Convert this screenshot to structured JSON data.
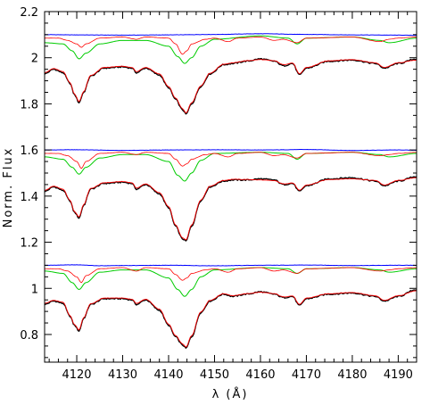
{
  "chart_data": {
    "type": "line",
    "xlabel": "λ (Å)",
    "ylabel": "Norm. Flux",
    "xlim": [
      4113,
      4194
    ],
    "ylim": [
      0.68,
      2.2
    ],
    "x_ticks": [
      4120,
      4130,
      4140,
      4150,
      4160,
      4170,
      4180,
      4190
    ],
    "y_ticks": [
      0.8,
      1.0,
      1.2,
      1.4,
      1.6,
      1.8,
      2.0,
      2.2
    ],
    "y_tick_labels": [
      "0.8",
      "1",
      "1.2",
      "1.4",
      "1.6",
      "1.8",
      "2",
      "2.2"
    ],
    "colors": {
      "observed": "#000000",
      "model": "#ff0000",
      "component_a": "#00cc00",
      "component_b": "#ff0000",
      "component_c": "#0000ff"
    },
    "panels": [
      {
        "series": [
          {
            "role": "component_c",
            "x": [
              4113,
              4120,
              4130,
              4140,
              4150,
              4160,
              4170,
              4180,
              4190,
              4194
            ],
            "y": [
              2.1,
              2.099,
              2.098,
              2.099,
              2.101,
              2.104,
              2.101,
              2.099,
              2.098,
              2.097
            ]
          },
          {
            "role": "component_a",
            "x": [
              4113,
              4117,
              4119,
              4120.5,
              4122,
              4125,
              4130,
              4135,
              4140,
              4142,
              4143.5,
              4145,
              4147,
              4150,
              4160,
              4166,
              4168,
              4170,
              4180,
              4186,
              4188,
              4194
            ],
            "y": [
              2.065,
              2.06,
              2.03,
              1.995,
              2.02,
              2.06,
              2.075,
              2.075,
              2.05,
              2.005,
              1.975,
              2.0,
              2.05,
              2.08,
              2.095,
              2.085,
              2.06,
              2.085,
              2.09,
              2.075,
              2.065,
              2.085
            ]
          },
          {
            "role": "component_b",
            "x": [
              4113,
              4116,
              4118,
              4120,
              4121,
              4122,
              4125,
              4130,
              4133,
              4135,
              4140,
              4141.5,
              4143,
              4144,
              4145,
              4148,
              4150,
              4153,
              4155,
              4160,
              4163,
              4165,
              4168,
              4170,
              4180,
              4186,
              4188,
              4190,
              4194
            ],
            "y": [
              2.085,
              2.085,
              2.075,
              2.06,
              2.045,
              2.06,
              2.085,
              2.09,
              2.08,
              2.09,
              2.085,
              2.06,
              2.015,
              2.03,
              2.06,
              2.08,
              2.085,
              2.07,
              2.085,
              2.09,
              2.075,
              2.08,
              2.065,
              2.085,
              2.09,
              2.07,
              2.08,
              2.085,
              2.09
            ]
          },
          {
            "role": "observed",
            "x": [
              4113,
              4115,
              4117,
              4118.5,
              4119.5,
              4120.5,
              4121.5,
              4123,
              4126,
              4130,
              4132,
              4133,
              4135,
              4138,
              4140,
              4141.5,
              4143,
              4143.8,
              4145,
              4147,
              4149,
              4152,
              4154,
              4157,
              4160,
              4163,
              4165,
              4167,
              4168.5,
              4170,
              4175,
              4180,
              4185,
              4187,
              4190,
              4194
            ],
            "y": [
              1.93,
              1.95,
              1.935,
              1.89,
              1.84,
              1.805,
              1.85,
              1.92,
              1.955,
              1.96,
              1.955,
              1.935,
              1.955,
              1.925,
              1.87,
              1.82,
              1.775,
              1.755,
              1.8,
              1.875,
              1.93,
              1.97,
              1.975,
              1.985,
              1.995,
              1.985,
              1.965,
              1.975,
              1.925,
              1.955,
              1.985,
              1.99,
              1.975,
              1.955,
              1.975,
              1.995
            ]
          },
          {
            "role": "model",
            "x": [
              4113,
              4115,
              4117,
              4118.5,
              4119.5,
              4120.5,
              4121.5,
              4123,
              4126,
              4130,
              4132,
              4133,
              4135,
              4138,
              4140,
              4141.5,
              4143,
              4143.8,
              4145,
              4147,
              4149,
              4152,
              4154,
              4157,
              4160,
              4163,
              4165,
              4167,
              4168.5,
              4170,
              4175,
              4180,
              4185,
              4187,
              4190,
              4194
            ],
            "y": [
              1.935,
              1.953,
              1.94,
              1.893,
              1.843,
              1.81,
              1.853,
              1.923,
              1.958,
              1.963,
              1.958,
              1.94,
              1.958,
              1.93,
              1.875,
              1.825,
              1.78,
              1.76,
              1.805,
              1.878,
              1.933,
              1.972,
              1.978,
              1.987,
              1.992,
              1.987,
              1.97,
              1.977,
              1.93,
              1.958,
              1.987,
              1.992,
              1.978,
              1.958,
              1.978,
              1.99
            ]
          }
        ]
      },
      {
        "series": [
          {
            "role": "component_c",
            "x": [
              4113,
              4120,
              4130,
              4140,
              4150,
              4160,
              4170,
              4180,
              4190,
              4194
            ],
            "y": [
              1.6,
              1.601,
              1.598,
              1.6,
              1.601,
              1.6,
              1.602,
              1.598,
              1.6,
              1.599
            ]
          },
          {
            "role": "component_a",
            "x": [
              4113,
              4117,
              4119,
              4120.5,
              4122,
              4125,
              4130,
              4135,
              4140,
              4142,
              4143.5,
              4145,
              4147,
              4150,
              4160,
              4166,
              4168,
              4170,
              4180,
              4186,
              4188,
              4194
            ],
            "y": [
              1.57,
              1.56,
              1.525,
              1.495,
              1.525,
              1.565,
              1.58,
              1.58,
              1.55,
              1.49,
              1.465,
              1.5,
              1.555,
              1.585,
              1.59,
              1.585,
              1.56,
              1.585,
              1.59,
              1.58,
              1.57,
              1.585
            ]
          },
          {
            "role": "component_b",
            "x": [
              4113,
              4116,
              4118,
              4120,
              4121,
              4122,
              4125,
              4130,
              4133,
              4135,
              4140,
              4141.5,
              4143,
              4144,
              4145,
              4148,
              4150,
              4153,
              4155,
              4160,
              4163,
              4165,
              4168,
              4170,
              4180,
              4186,
              4188,
              4190,
              4194
            ],
            "y": [
              1.585,
              1.585,
              1.575,
              1.55,
              1.52,
              1.55,
              1.585,
              1.59,
              1.58,
              1.59,
              1.585,
              1.56,
              1.53,
              1.54,
              1.56,
              1.58,
              1.585,
              1.57,
              1.585,
              1.59,
              1.575,
              1.58,
              1.565,
              1.585,
              1.59,
              1.575,
              1.58,
              1.585,
              1.59
            ]
          },
          {
            "role": "observed",
            "x": [
              4113,
              4115,
              4117,
              4118.5,
              4119.5,
              4120.5,
              4121.5,
              4123,
              4126,
              4130,
              4132,
              4133,
              4135,
              4138,
              4140,
              4141.5,
              4143,
              4143.8,
              4145,
              4147,
              4149,
              4152,
              4154,
              4157,
              4160,
              4163,
              4165,
              4167,
              4168.5,
              4170,
              4175,
              4180,
              4185,
              4187,
              4190,
              4194
            ],
            "y": [
              1.42,
              1.44,
              1.425,
              1.38,
              1.33,
              1.305,
              1.36,
              1.43,
              1.455,
              1.46,
              1.455,
              1.43,
              1.45,
              1.41,
              1.35,
              1.27,
              1.215,
              1.205,
              1.27,
              1.38,
              1.44,
              1.465,
              1.47,
              1.47,
              1.475,
              1.47,
              1.45,
              1.455,
              1.42,
              1.445,
              1.475,
              1.48,
              1.465,
              1.445,
              1.465,
              1.485
            ]
          },
          {
            "role": "model",
            "x": [
              4113,
              4115,
              4117,
              4118.5,
              4119.5,
              4120.5,
              4121.5,
              4123,
              4126,
              4130,
              4132,
              4133,
              4135,
              4138,
              4140,
              4141.5,
              4143,
              4143.8,
              4145,
              4147,
              4149,
              4152,
              4154,
              4157,
              4160,
              4163,
              4165,
              4167,
              4168.5,
              4170,
              4175,
              4180,
              4185,
              4187,
              4190,
              4194
            ],
            "y": [
              1.425,
              1.443,
              1.43,
              1.383,
              1.333,
              1.31,
              1.363,
              1.433,
              1.458,
              1.463,
              1.458,
              1.435,
              1.453,
              1.415,
              1.355,
              1.275,
              1.22,
              1.21,
              1.275,
              1.383,
              1.443,
              1.468,
              1.473,
              1.472,
              1.47,
              1.467,
              1.453,
              1.457,
              1.425,
              1.448,
              1.472,
              1.475,
              1.468,
              1.448,
              1.468,
              1.48
            ]
          }
        ]
      },
      {
        "series": [
          {
            "role": "component_c",
            "x": [
              4113,
              4120,
              4125,
              4130,
              4140,
              4150,
              4160,
              4170,
              4180,
              4190,
              4194
            ],
            "y": [
              1.1,
              1.102,
              1.098,
              1.099,
              1.1,
              1.098,
              1.1,
              1.101,
              1.099,
              1.1,
              1.1
            ]
          },
          {
            "role": "component_a",
            "x": [
              4113,
              4117,
              4119,
              4120.5,
              4122,
              4125,
              4130,
              4135,
              4140,
              4142,
              4143.5,
              4145,
              4147,
              4150,
              4160,
              4166,
              4168,
              4170,
              4180,
              4186,
              4188,
              4194
            ],
            "y": [
              1.075,
              1.065,
              1.025,
              0.995,
              1.025,
              1.07,
              1.08,
              1.08,
              1.045,
              0.995,
              0.965,
              0.995,
              1.05,
              1.08,
              1.09,
              1.085,
              1.065,
              1.085,
              1.09,
              1.08,
              1.07,
              1.085
            ]
          },
          {
            "role": "component_b",
            "x": [
              4113,
              4116,
              4118,
              4120,
              4121,
              4122,
              4125,
              4130,
              4133,
              4135,
              4140,
              4141.5,
              4143,
              4144,
              4145,
              4148,
              4150,
              4153,
              4155,
              4160,
              4163,
              4165,
              4168,
              4170,
              4180,
              4186,
              4188,
              4190,
              4194
            ],
            "y": [
              1.085,
              1.085,
              1.075,
              1.05,
              1.025,
              1.055,
              1.085,
              1.09,
              1.075,
              1.09,
              1.085,
              1.06,
              1.035,
              1.045,
              1.065,
              1.08,
              1.085,
              1.07,
              1.085,
              1.09,
              1.075,
              1.08,
              1.065,
              1.085,
              1.09,
              1.075,
              1.08,
              1.085,
              1.09
            ]
          },
          {
            "role": "observed",
            "x": [
              4113,
              4115,
              4117,
              4118.5,
              4119.5,
              4120.5,
              4121.5,
              4123,
              4126,
              4130,
              4132,
              4133,
              4135,
              4138,
              4140,
              4141.5,
              4143,
              4143.8,
              4145,
              4147,
              4149,
              4152,
              4154,
              4157,
              4160,
              4163,
              4165,
              4167,
              4168.5,
              4170,
              4175,
              4180,
              4185,
              4187,
              4190,
              4194
            ],
            "y": [
              0.93,
              0.945,
              0.935,
              0.88,
              0.84,
              0.815,
              0.87,
              0.93,
              0.955,
              0.955,
              0.95,
              0.93,
              0.95,
              0.905,
              0.84,
              0.79,
              0.755,
              0.74,
              0.79,
              0.895,
              0.945,
              0.975,
              0.965,
              0.975,
              0.985,
              0.975,
              0.96,
              0.965,
              0.925,
              0.955,
              0.975,
              0.98,
              0.965,
              0.945,
              0.965,
              0.995
            ]
          },
          {
            "role": "model",
            "x": [
              4113,
              4115,
              4117,
              4118.5,
              4119.5,
              4120.5,
              4121.5,
              4123,
              4126,
              4130,
              4132,
              4133,
              4135,
              4138,
              4140,
              4141.5,
              4143,
              4143.8,
              4145,
              4147,
              4149,
              4152,
              4154,
              4157,
              4160,
              4163,
              4165,
              4167,
              4168.5,
              4170,
              4175,
              4180,
              4185,
              4187,
              4190,
              4194
            ],
            "y": [
              0.935,
              0.948,
              0.94,
              0.883,
              0.843,
              0.82,
              0.873,
              0.933,
              0.958,
              0.958,
              0.953,
              0.935,
              0.953,
              0.91,
              0.845,
              0.795,
              0.76,
              0.745,
              0.795,
              0.898,
              0.948,
              0.977,
              0.968,
              0.977,
              0.983,
              0.977,
              0.963,
              0.967,
              0.93,
              0.958,
              0.977,
              0.982,
              0.968,
              0.948,
              0.968,
              0.99
            ]
          }
        ]
      }
    ]
  }
}
